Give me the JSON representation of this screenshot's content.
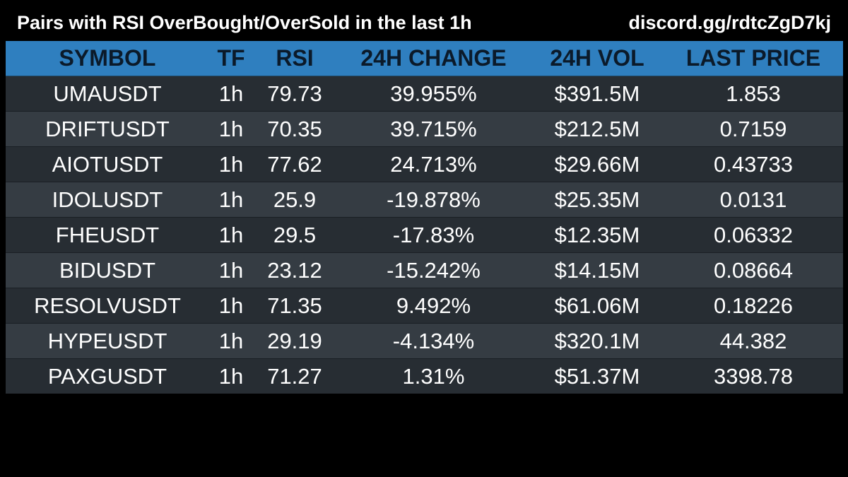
{
  "header": {
    "title": "Pairs with RSI OverBought/OverSold in the last 1h",
    "link": "discord.gg/rdtcZgD7kj"
  },
  "table": {
    "columns": [
      "SYMBOL",
      "TF",
      "RSI",
      "24H CHANGE",
      "24H VOL",
      "LAST PRICE"
    ],
    "rows": [
      [
        "UMAUSDT",
        "1h",
        "79.73",
        "39.955%",
        "$391.5M",
        "1.853"
      ],
      [
        "DRIFTUSDT",
        "1h",
        "70.35",
        "39.715%",
        "$212.5M",
        "0.7159"
      ],
      [
        "AIOTUSDT",
        "1h",
        "77.62",
        "24.713%",
        "$29.66M",
        "0.43733"
      ],
      [
        "IDOLUSDT",
        "1h",
        "25.9",
        "-19.878%",
        "$25.35M",
        "0.0131"
      ],
      [
        "FHEUSDT",
        "1h",
        "29.5",
        "-17.83%",
        "$12.35M",
        "0.06332"
      ],
      [
        "BIDUSDT",
        "1h",
        "23.12",
        "-15.242%",
        "$14.15M",
        "0.08664"
      ],
      [
        "RESOLVUSDT",
        "1h",
        "71.35",
        "9.492%",
        "$61.06M",
        "0.18226"
      ],
      [
        "HYPEUSDT",
        "1h",
        "29.19",
        "-4.134%",
        "$320.1M",
        "44.382"
      ],
      [
        "PAXGUSDT",
        "1h",
        "71.27",
        "1.31%",
        "$51.37M",
        "3398.78"
      ]
    ]
  },
  "colors": {
    "background": "#000000",
    "header_row": "#2f7fbf",
    "row_odd": "#272d33",
    "row_even": "#353c43",
    "text": "#ffffff",
    "header_text": "#0b1a2a"
  }
}
